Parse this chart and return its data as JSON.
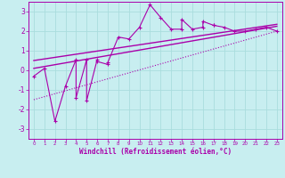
{
  "xlabel": "Windchill (Refroidissement éolien,°C)",
  "background_color": "#c8eef0",
  "grid_color": "#aadddd",
  "line_color": "#aa00aa",
  "xlim": [
    -0.5,
    23.5
  ],
  "ylim": [
    -3.5,
    3.5
  ],
  "xticks": [
    0,
    1,
    2,
    3,
    4,
    5,
    6,
    7,
    8,
    9,
    10,
    11,
    12,
    13,
    14,
    15,
    16,
    17,
    18,
    19,
    20,
    21,
    22,
    23
  ],
  "yticks": [
    -3,
    -2,
    -1,
    0,
    1,
    2,
    3
  ],
  "scatter_x": [
    0,
    1,
    2,
    3,
    4,
    4,
    5,
    5,
    6,
    6,
    7,
    7,
    8,
    9,
    10,
    11,
    12,
    13,
    14,
    14,
    15,
    16,
    16,
    17,
    17,
    18,
    19,
    20,
    21,
    22,
    23
  ],
  "scatter_y": [
    -0.3,
    0.1,
    -2.6,
    -0.8,
    0.55,
    -1.4,
    0.55,
    -1.55,
    0.55,
    0.45,
    0.3,
    0.4,
    1.7,
    1.6,
    2.2,
    3.35,
    2.7,
    2.1,
    2.1,
    2.6,
    2.1,
    2.2,
    2.5,
    2.3,
    2.3,
    2.2,
    2.0,
    2.0,
    2.1,
    2.2,
    2.0
  ],
  "line1_x": [
    0,
    23
  ],
  "line1_y": [
    0.1,
    2.25
  ],
  "line2_x": [
    0,
    23
  ],
  "line2_y": [
    0.5,
    2.35
  ],
  "line3_x": [
    0,
    23
  ],
  "line3_y": [
    -1.5,
    2.0
  ]
}
